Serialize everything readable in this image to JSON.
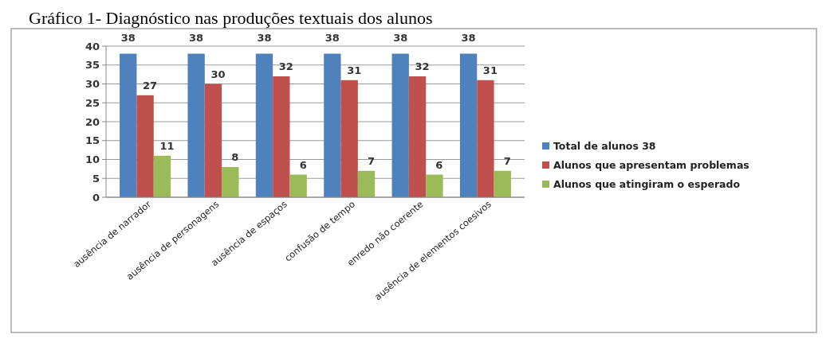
{
  "chart_data": {
    "type": "bar",
    "title": "Gráfico 1- Diagnóstico nas produções textuais dos alunos",
    "categories": [
      "ausência de narrador",
      "ausência de personagens",
      "ausência de espaços",
      "confusão de  tempo",
      "enredo não coerente",
      "ausência de elementos coesivos"
    ],
    "series": [
      {
        "name": "Total de alunos 38",
        "color": "#4f81bd",
        "values": [
          38,
          38,
          38,
          38,
          38,
          38
        ]
      },
      {
        "name": "Alunos que apresentam problemas",
        "color": "#c0504d",
        "values": [
          27,
          30,
          32,
          31,
          32,
          31
        ]
      },
      {
        "name": "Alunos que atingiram o esperado",
        "color": "#9bbb59",
        "values": [
          11,
          8,
          6,
          7,
          6,
          7
        ]
      }
    ],
    "ylim": [
      0,
      40
    ],
    "yticks": [
      0,
      5,
      10,
      15,
      20,
      25,
      30,
      35,
      40
    ],
    "grid": "y",
    "legend": "right",
    "data_labels": true
  }
}
